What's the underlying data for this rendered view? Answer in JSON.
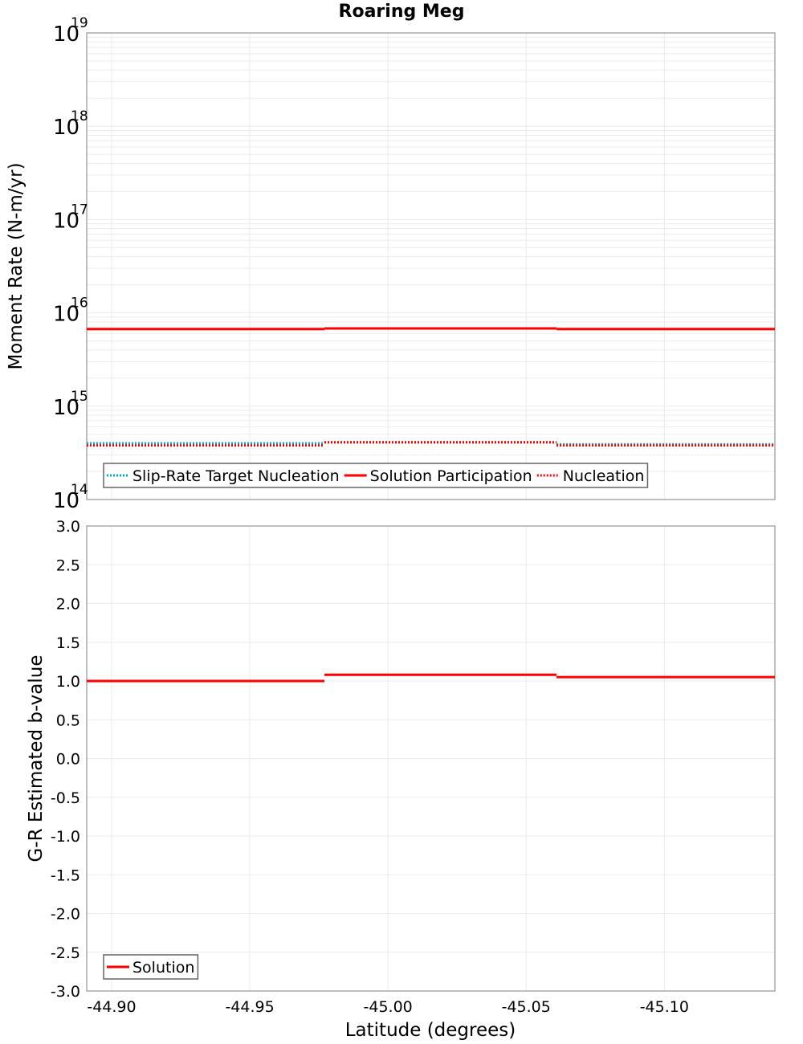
{
  "title": "Roaring Meg",
  "colors": {
    "solution": "#ff0000",
    "target": "#00b0c0",
    "grid": "#ebebeb",
    "frame": "#aaaaaa",
    "legend_border": "#666666"
  },
  "chart_data": [
    {
      "type": "line",
      "subtype": "step",
      "title": "Roaring Meg",
      "xlabel": "Latitude (degrees)",
      "ylabel": "Moment Rate (N-m/yr)",
      "yscale": "log",
      "ylim": [
        100000000000000.0,
        1e+19
      ],
      "xlim": [
        -44.891,
        -45.14
      ],
      "x_reversed": true,
      "grid": true,
      "y_ticks": [
        "10^14",
        "10^15",
        "10^16",
        "10^17",
        "10^18",
        "10^19"
      ],
      "legend_position": "lower-left",
      "x_breaks": [
        -44.891,
        -44.977,
        -45.061,
        -45.14
      ],
      "series": [
        {
          "name": "Slip-Rate Target Nucleation",
          "style": "dotted",
          "color": "#00b0c0",
          "values": [
            400000000000000.0,
            410000000000000.0,
            390000000000000.0
          ]
        },
        {
          "name": "Solution Participation",
          "style": "solid",
          "color": "#ff0000",
          "values": [
            6700000000000000.0,
            6800000000000000.0,
            6700000000000000.0
          ]
        },
        {
          "name": "Nucleation",
          "style": "dotted",
          "color": "#ff0000",
          "values": [
            380000000000000.0,
            410000000000000.0,
            380000000000000.0
          ]
        }
      ]
    },
    {
      "type": "line",
      "subtype": "step",
      "xlabel": "Latitude (degrees)",
      "ylabel": "G-R Estimated b-value",
      "ylim": [
        -3.0,
        3.0
      ],
      "xlim": [
        -44.891,
        -45.14
      ],
      "x_reversed": true,
      "grid": true,
      "y_ticks": [
        "3.0",
        "2.5",
        "2.0",
        "1.5",
        "1.0",
        "0.5",
        "0.0",
        "-0.5",
        "-1.0",
        "-1.5",
        "-2.0",
        "-2.5",
        "-3.0"
      ],
      "x_ticks": [
        "-44.90",
        "-44.95",
        "-45.00",
        "-45.05",
        "-45.10"
      ],
      "legend_position": "lower-left",
      "x_breaks": [
        -44.891,
        -44.977,
        -45.061,
        -45.14
      ],
      "series": [
        {
          "name": "Solution",
          "style": "solid",
          "color": "#ff0000",
          "values": [
            1.0,
            1.08,
            1.05
          ]
        }
      ]
    }
  ]
}
